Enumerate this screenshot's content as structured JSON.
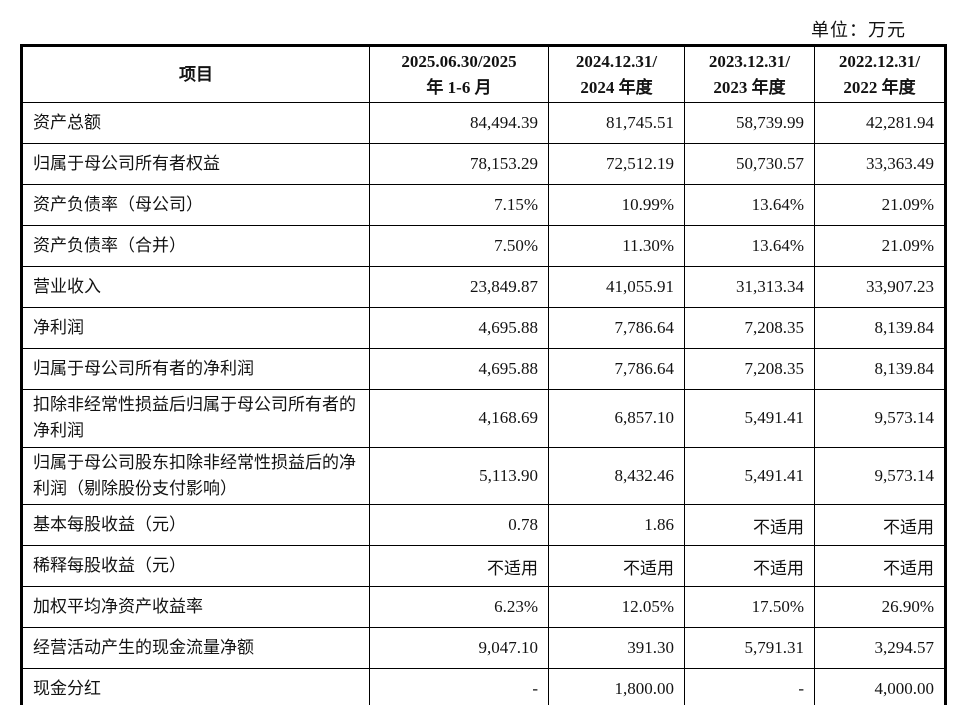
{
  "page": {
    "unit_label": "单位：万元"
  },
  "table": {
    "header": [
      "项目",
      "2025.06.30/2025\n年 1-6 月",
      "2024.12.31/\n2024 年度",
      "2023.12.31/\n2023 年度",
      "2022.12.31/\n2022 年度"
    ],
    "rows": [
      {
        "label": "资产总额",
        "values": [
          "84,494.39",
          "81,745.51",
          "58,739.99",
          "42,281.94"
        ],
        "tall": false
      },
      {
        "label": "归属于母公司所有者权益",
        "values": [
          "78,153.29",
          "72,512.19",
          "50,730.57",
          "33,363.49"
        ],
        "tall": false
      },
      {
        "label": "资产负债率（母公司）",
        "values": [
          "7.15%",
          "10.99%",
          "13.64%",
          "21.09%"
        ],
        "tall": false
      },
      {
        "label": "资产负债率（合并）",
        "values": [
          "7.50%",
          "11.30%",
          "13.64%",
          "21.09%"
        ],
        "tall": false
      },
      {
        "label": "营业收入",
        "values": [
          "23,849.87",
          "41,055.91",
          "31,313.34",
          "33,907.23"
        ],
        "tall": false
      },
      {
        "label": "净利润",
        "values": [
          "4,695.88",
          "7,786.64",
          "7,208.35",
          "8,139.84"
        ],
        "tall": false
      },
      {
        "label": "归属于母公司所有者的净利润",
        "values": [
          "4,695.88",
          "7,786.64",
          "7,208.35",
          "8,139.84"
        ],
        "tall": false
      },
      {
        "label": "扣除非经常性损益后归属于母公司所有者的净利润",
        "values": [
          "4,168.69",
          "6,857.10",
          "5,491.41",
          "9,573.14"
        ],
        "tall": true
      },
      {
        "label": "归属于母公司股东扣除非经常性损益后的净利润（剔除股份支付影响）",
        "values": [
          "5,113.90",
          "8,432.46",
          "5,491.41",
          "9,573.14"
        ],
        "tall": true
      },
      {
        "label": "基本每股收益（元）",
        "values": [
          "0.78",
          "1.86",
          "不适用",
          "不适用"
        ],
        "tall": false
      },
      {
        "label": "稀释每股收益（元）",
        "values": [
          "不适用",
          "不适用",
          "不适用",
          "不适用"
        ],
        "tall": false
      },
      {
        "label": "加权平均净资产收益率",
        "values": [
          "6.23%",
          "12.05%",
          "17.50%",
          "26.90%"
        ],
        "tall": false
      },
      {
        "label": "经营活动产生的现金流量净额",
        "values": [
          "9,047.10",
          "391.30",
          "5,791.31",
          "3,294.57"
        ],
        "tall": false
      },
      {
        "label": "现金分红",
        "values": [
          "-",
          "1,800.00",
          "-",
          "4,000.00"
        ],
        "tall": false
      }
    ]
  }
}
